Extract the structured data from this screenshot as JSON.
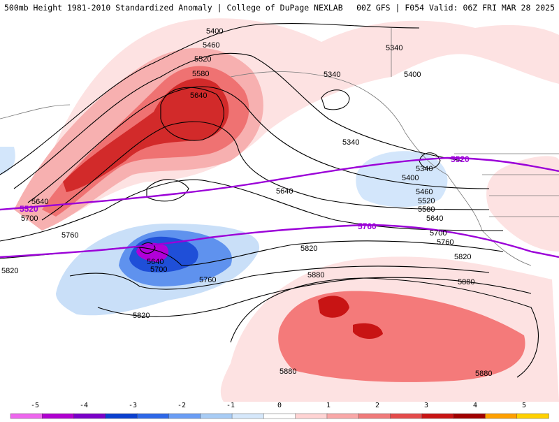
{
  "header": {
    "left": "500mb Height 1981-2010 Standardized Anomaly | College of DuPage NEXLAB",
    "right": "00Z GFS | F054 Valid: 06Z FRI MAR 28 2025"
  },
  "contours": {
    "labels": [
      "5400",
      "5460",
      "5520",
      "5580",
      "5640",
      "5340",
      "5340",
      "5400",
      "5340",
      "5340",
      "5400",
      "5460",
      "5520",
      "5580",
      "5640",
      "5520",
      "5640",
      "5700",
      "5760",
      "5640",
      "5700",
      "5760",
      "5820",
      "5820",
      "5880",
      "5880",
      "5880",
      "5880",
      "5700",
      "5760",
      "5820",
      "5760",
      "5520"
    ],
    "highlighted": [
      "5520",
      "5760",
      "5520",
      "5760"
    ]
  },
  "colorbar": {
    "ticks": [
      "-5",
      "-4",
      "-3",
      "-2",
      "-1",
      "0",
      "1",
      "2",
      "3",
      "4",
      "5"
    ],
    "colors": [
      "#ee66ee",
      "#b000d0",
      "#7a00c8",
      "#0a3fcf",
      "#2d67e8",
      "#6a9df5",
      "#a8ccf5",
      "#d6e8fb",
      "#ffffff",
      "#ffd4d4",
      "#f9a8a8",
      "#f07a7a",
      "#e44b4b",
      "#c81414",
      "#a00000",
      "#ffa000",
      "#ffd100"
    ]
  }
}
